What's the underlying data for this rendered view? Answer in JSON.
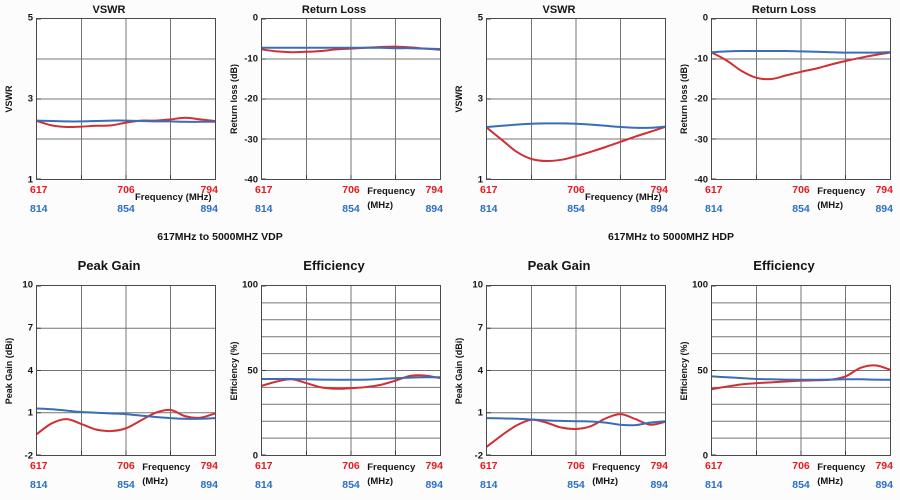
{
  "captions": [
    {
      "text": "617MHz to 5000MHZ VDP"
    },
    {
      "text": "617MHz to 5000MHZ HDP"
    }
  ],
  "colors": {
    "red_line": "#d02f33",
    "blue_line": "#3a6db8",
    "red_tick": "#e8191f",
    "blue_tick": "#2b6fc4",
    "grid": "#757575",
    "frame": "#4a4a4a"
  },
  "x_axis": {
    "low_band_ticks": [
      "617",
      "706",
      "794"
    ],
    "high_band_ticks": [
      "814",
      "854",
      "894"
    ]
  },
  "chart_data": [
    {
      "id": "vswr-vdp",
      "group": "VDP",
      "type": "line",
      "title": "VSWR",
      "ylabel": "VSWR",
      "ylim": [
        1,
        5
      ],
      "yticks": [
        {
          "v": 5,
          "t": "5"
        },
        {
          "v": 3,
          "t": "3"
        },
        {
          "v": 1,
          "t": "1"
        }
      ],
      "ygrid": [
        2,
        3,
        4
      ],
      "xgrid": [
        0.25,
        0.5,
        0.75
      ],
      "xticks_red": [
        "617",
        "706",
        "794"
      ],
      "xticks_blue": [
        "814",
        "854",
        "894"
      ],
      "xlabel_lines": [
        "Frequency (MHz)"
      ],
      "series": [
        {
          "name": "red",
          "color_key": "red_line",
          "values": [
            2.45,
            2.34,
            2.3,
            2.31,
            2.33,
            2.34,
            2.41,
            2.46,
            2.46,
            2.49,
            2.53,
            2.49,
            2.45
          ]
        },
        {
          "name": "blue",
          "color_key": "blue_line",
          "values": [
            2.46,
            2.45,
            2.44,
            2.44,
            2.45,
            2.46,
            2.46,
            2.45,
            2.44,
            2.44,
            2.43,
            2.43,
            2.43
          ]
        }
      ]
    },
    {
      "id": "return-loss-vdp",
      "group": "VDP",
      "type": "line",
      "title": "Return Loss",
      "ylabel": "Return loss (dB)",
      "ylim": [
        -40,
        0
      ],
      "yticks": [
        {
          "v": 0,
          "t": "0"
        },
        {
          "v": -10,
          "t": "-10"
        },
        {
          "v": -20,
          "t": "-20"
        },
        {
          "v": -30,
          "t": "-30"
        },
        {
          "v": -40,
          "t": "-40"
        }
      ],
      "ygrid": [
        -10,
        -20,
        -30
      ],
      "xgrid": [
        0.25,
        0.5,
        0.75
      ],
      "xticks_red": [
        "617",
        "706",
        "794"
      ],
      "xticks_blue": [
        "814",
        "854",
        "894"
      ],
      "xlabel_lines": [
        "Frequency",
        "(MHz)"
      ],
      "series": [
        {
          "name": "red",
          "color_key": "red_line",
          "values": [
            -7.6,
            -8.1,
            -8.3,
            -8.2,
            -8.0,
            -7.6,
            -7.4,
            -7.2,
            -7.0,
            -6.9,
            -7.1,
            -7.4,
            -7.7
          ]
        },
        {
          "name": "blue",
          "color_key": "blue_line",
          "values": [
            -7.2,
            -7.2,
            -7.2,
            -7.2,
            -7.2,
            -7.2,
            -7.2,
            -7.2,
            -7.2,
            -7.3,
            -7.3,
            -7.4,
            -7.5
          ]
        }
      ]
    },
    {
      "id": "vswr-hdp",
      "group": "HDP",
      "type": "line",
      "title": "VSWR",
      "ylabel": "VSWR",
      "ylim": [
        1,
        5
      ],
      "yticks": [
        {
          "v": 5,
          "t": "5"
        },
        {
          "v": 3,
          "t": "3"
        },
        {
          "v": 1,
          "t": "1"
        }
      ],
      "ygrid": [
        2,
        3,
        4
      ],
      "xgrid": [
        0.25,
        0.5,
        0.75
      ],
      "xticks_red": [
        "617",
        "706",
        "794"
      ],
      "xticks_blue": [
        "814",
        "854",
        "894"
      ],
      "xlabel_lines": [
        "Frequency (MHz)"
      ],
      "series": [
        {
          "name": "red",
          "color_key": "red_line",
          "values": [
            2.28,
            1.98,
            1.68,
            1.5,
            1.45,
            1.48,
            1.57,
            1.68,
            1.8,
            1.93,
            2.06,
            2.18,
            2.3
          ]
        },
        {
          "name": "blue",
          "color_key": "blue_line",
          "values": [
            2.3,
            2.33,
            2.36,
            2.38,
            2.39,
            2.39,
            2.38,
            2.36,
            2.33,
            2.3,
            2.28,
            2.28,
            2.31
          ]
        }
      ]
    },
    {
      "id": "return-loss-hdp",
      "group": "HDP",
      "type": "line",
      "title": "Return Loss",
      "ylabel": "Return loss (dB)",
      "ylim": [
        -40,
        0
      ],
      "yticks": [
        {
          "v": 0,
          "t": "0"
        },
        {
          "v": -10,
          "t": "-10"
        },
        {
          "v": -20,
          "t": "-20"
        },
        {
          "v": -30,
          "t": "-30"
        },
        {
          "v": -40,
          "t": "-40"
        }
      ],
      "ygrid": [
        -10,
        -20,
        -30
      ],
      "xgrid": [
        0.25,
        0.5,
        0.75
      ],
      "xticks_red": [
        "617",
        "706",
        "794"
      ],
      "xticks_blue": [
        "814",
        "854",
        "894"
      ],
      "xlabel_lines": [
        "Frequency",
        "(MHz)"
      ],
      "series": [
        {
          "name": "red",
          "color_key": "red_line",
          "values": [
            -8.4,
            -10.4,
            -13.0,
            -14.7,
            -15.0,
            -14.1,
            -13.2,
            -12.4,
            -11.4,
            -10.5,
            -9.7,
            -9.0,
            -8.4
          ]
        },
        {
          "name": "blue",
          "color_key": "blue_line",
          "values": [
            -8.3,
            -8.1,
            -8.0,
            -8.0,
            -8.0,
            -8.0,
            -8.1,
            -8.2,
            -8.3,
            -8.4,
            -8.4,
            -8.4,
            -8.3
          ]
        }
      ]
    },
    {
      "id": "peak-gain-vdp",
      "group": "VDP",
      "type": "line",
      "title": "Peak Gain",
      "ylabel": "Peak Gain (dBi)",
      "ylim": [
        -2,
        10
      ],
      "yticks": [
        {
          "v": 10,
          "t": "10"
        },
        {
          "v": 7,
          "t": "7"
        },
        {
          "v": 4,
          "t": "4"
        },
        {
          "v": 1,
          "t": "1"
        },
        {
          "v": -2,
          "t": "-2"
        }
      ],
      "ygrid": [
        7,
        4,
        1
      ],
      "xgrid": [
        0.25,
        0.5,
        0.75
      ],
      "xticks_red": [
        "617",
        "706",
        "794"
      ],
      "xticks_blue": [
        "814",
        "854",
        "894"
      ],
      "xlabel_lines": [
        "Frequency",
        "(MHz)"
      ],
      "series": [
        {
          "name": "red",
          "color_key": "red_line",
          "values": [
            -0.5,
            0.25,
            0.55,
            0.2,
            -0.2,
            -0.3,
            -0.1,
            0.45,
            1.0,
            1.2,
            0.75,
            0.65,
            0.95
          ]
        },
        {
          "name": "blue",
          "color_key": "blue_line",
          "values": [
            1.3,
            1.25,
            1.15,
            1.05,
            1.0,
            0.95,
            0.9,
            0.8,
            0.7,
            0.62,
            0.57,
            0.57,
            0.62
          ]
        }
      ]
    },
    {
      "id": "efficiency-vdp",
      "group": "VDP",
      "type": "line",
      "title": "Efficiency",
      "ylabel": "Efficiency (%)",
      "ylim": [
        0,
        100
      ],
      "yticks": [
        {
          "v": 100,
          "t": "100"
        },
        {
          "v": 50,
          "t": "50"
        },
        {
          "v": 0,
          "t": "0"
        }
      ],
      "ygrid": [
        10,
        20,
        30,
        40,
        50,
        60,
        70,
        80,
        90
      ],
      "xgrid": [
        0.25,
        0.5,
        0.75
      ],
      "xticks_red": [
        "617",
        "706",
        "794"
      ],
      "xticks_blue": [
        "814",
        "854",
        "894"
      ],
      "xlabel_lines": [
        "Frequency",
        "(MHz)"
      ],
      "series": [
        {
          "name": "red",
          "color_key": "red_line",
          "values": [
            41.0,
            43.5,
            44.8,
            42.5,
            40.0,
            39.2,
            39.5,
            40.2,
            41.5,
            44.0,
            46.8,
            47.0,
            45.5
          ]
        },
        {
          "name": "blue",
          "color_key": "blue_line",
          "values": [
            45.0,
            45.0,
            45.0,
            44.8,
            44.6,
            44.5,
            44.5,
            44.6,
            45.0,
            45.4,
            45.8,
            46.0,
            46.0
          ]
        }
      ]
    },
    {
      "id": "peak-gain-hdp",
      "group": "HDP",
      "type": "line",
      "title": "Peak Gain",
      "ylabel": "Peak Gain (dBi)",
      "ylim": [
        -2,
        10
      ],
      "yticks": [
        {
          "v": 10,
          "t": "10"
        },
        {
          "v": 7,
          "t": "7"
        },
        {
          "v": 4,
          "t": "4"
        },
        {
          "v": 1,
          "t": "1"
        },
        {
          "v": -2,
          "t": "-2"
        }
      ],
      "ygrid": [
        7,
        4,
        1
      ],
      "xgrid": [
        0.25,
        0.5,
        0.75
      ],
      "xticks_red": [
        "617",
        "706",
        "794"
      ],
      "xticks_blue": [
        "814",
        "854",
        "894"
      ],
      "xlabel_lines": [
        "Frequency",
        "(MHz)"
      ],
      "series": [
        {
          "name": "red",
          "color_key": "red_line",
          "values": [
            -1.4,
            -0.6,
            0.1,
            0.5,
            0.3,
            -0.05,
            -0.15,
            0.05,
            0.6,
            0.9,
            0.55,
            0.15,
            0.35
          ]
        },
        {
          "name": "blue",
          "color_key": "blue_line",
          "values": [
            0.62,
            0.6,
            0.57,
            0.52,
            0.46,
            0.42,
            0.4,
            0.38,
            0.3,
            0.15,
            0.12,
            0.3,
            0.4
          ]
        }
      ]
    },
    {
      "id": "efficiency-hdp",
      "group": "HDP",
      "type": "line",
      "title": "Efficiency",
      "ylabel": "Efficiency (%)",
      "ylim": [
        0,
        100
      ],
      "yticks": [
        {
          "v": 100,
          "t": "100"
        },
        {
          "v": 50,
          "t": "50"
        },
        {
          "v": 0,
          "t": "0"
        }
      ],
      "ygrid": [
        10,
        20,
        30,
        40,
        50,
        60,
        70,
        80,
        90
      ],
      "xgrid": [
        0.25,
        0.5,
        0.75
      ],
      "xticks_red": [
        "617",
        "706",
        "794"
      ],
      "xticks_blue": [
        "814",
        "854",
        "894"
      ],
      "xlabel_lines": [
        "Frequency",
        "(MHz)"
      ],
      "series": [
        {
          "name": "red",
          "color_key": "red_line",
          "values": [
            39.0,
            40.5,
            41.8,
            42.5,
            43.0,
            43.5,
            44.0,
            44.2,
            44.6,
            46.5,
            51.5,
            53.0,
            50.5
          ]
        },
        {
          "name": "blue",
          "color_key": "blue_line",
          "values": [
            46.5,
            46.0,
            45.5,
            45.0,
            44.8,
            44.6,
            44.5,
            44.5,
            44.6,
            44.8,
            44.8,
            44.6,
            44.5
          ]
        }
      ]
    }
  ]
}
